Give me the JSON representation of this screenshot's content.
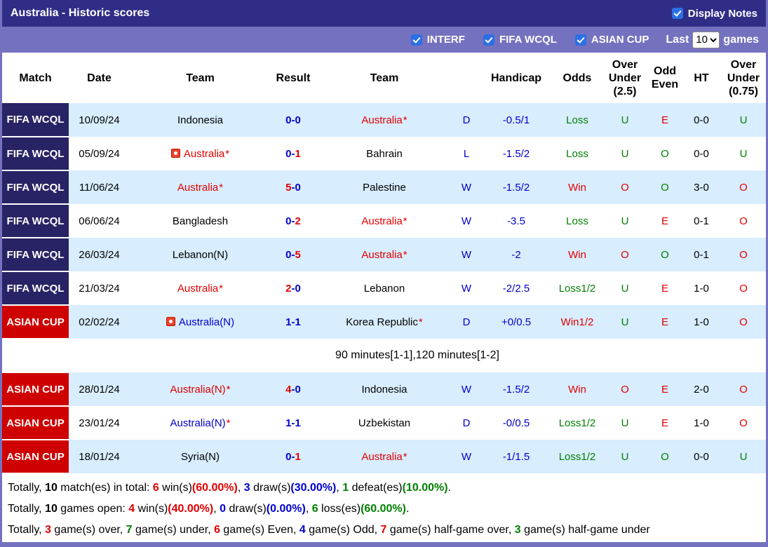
{
  "title_bar": {
    "title": "Australia - Historic scores",
    "display_notes_label": "Display Notes"
  },
  "filter_bar": {
    "checkboxes": [
      {
        "label": "INTERF",
        "checked": true
      },
      {
        "label": "FIFA WCQL",
        "checked": true
      },
      {
        "label": "ASIAN CUP",
        "checked": true
      }
    ],
    "last_label": "Last",
    "games_count": "10",
    "games_label": "games"
  },
  "table": {
    "headers": [
      "Match",
      "Date",
      "Team",
      "Result",
      "Team",
      "",
      "Handicap",
      "Odds",
      "Over Under (2.5)",
      "Odd Even",
      "HT",
      "Over Under (0.75)"
    ],
    "rows": [
      {
        "league": "FIFA WCQL",
        "league_type": "fifa",
        "date": "10/09/24",
        "team1": {
          "name": "Indonesia",
          "color": "black",
          "star": false,
          "icon": false
        },
        "score": {
          "home": "0",
          "away": "0",
          "home_color": "blue",
          "away_color": "blue"
        },
        "team2": {
          "name": "Australia",
          "color": "red",
          "star": true,
          "icon": false
        },
        "wdl": "D",
        "handicap": "-0.5/1",
        "odds": {
          "text": "Loss",
          "color": "green"
        },
        "ou25": {
          "text": "U",
          "color": "green"
        },
        "odd_even": {
          "text": "E",
          "color": "red"
        },
        "ht": "0-0",
        "ou075": {
          "text": "U",
          "color": "green"
        },
        "shade": true,
        "note": null
      },
      {
        "league": "FIFA WCQL",
        "league_type": "fifa",
        "date": "05/09/24",
        "team1": {
          "name": "Australia",
          "color": "red",
          "star": true,
          "icon": true
        },
        "score": {
          "home": "0",
          "away": "1",
          "home_color": "blue",
          "away_color": "red"
        },
        "team2": {
          "name": "Bahrain",
          "color": "black",
          "star": false,
          "icon": false
        },
        "wdl": "L",
        "handicap": "-1.5/2",
        "odds": {
          "text": "Loss",
          "color": "green"
        },
        "ou25": {
          "text": "U",
          "color": "green"
        },
        "odd_even": {
          "text": "O",
          "color": "green"
        },
        "ht": "0-0",
        "ou075": {
          "text": "U",
          "color": "green"
        },
        "shade": false,
        "note": null
      },
      {
        "league": "FIFA WCQL",
        "league_type": "fifa",
        "date": "11/06/24",
        "team1": {
          "name": "Australia",
          "color": "red",
          "star": true,
          "icon": false
        },
        "score": {
          "home": "5",
          "away": "0",
          "home_color": "red",
          "away_color": "blue"
        },
        "team2": {
          "name": "Palestine",
          "color": "black",
          "star": false,
          "icon": false
        },
        "wdl": "W",
        "handicap": "-1.5/2",
        "odds": {
          "text": "Win",
          "color": "red"
        },
        "ou25": {
          "text": "O",
          "color": "red"
        },
        "odd_even": {
          "text": "O",
          "color": "green"
        },
        "ht": "3-0",
        "ou075": {
          "text": "O",
          "color": "red"
        },
        "shade": true,
        "note": null
      },
      {
        "league": "FIFA WCQL",
        "league_type": "fifa",
        "date": "06/06/24",
        "team1": {
          "name": "Bangladesh",
          "color": "black",
          "star": false,
          "icon": false
        },
        "score": {
          "home": "0",
          "away": "2",
          "home_color": "blue",
          "away_color": "red"
        },
        "team2": {
          "name": "Australia",
          "color": "red",
          "star": true,
          "icon": false
        },
        "wdl": "W",
        "handicap": "-3.5",
        "odds": {
          "text": "Loss",
          "color": "green"
        },
        "ou25": {
          "text": "U",
          "color": "green"
        },
        "odd_even": {
          "text": "E",
          "color": "red"
        },
        "ht": "0-1",
        "ou075": {
          "text": "O",
          "color": "red"
        },
        "shade": false,
        "note": null
      },
      {
        "league": "FIFA WCQL",
        "league_type": "fifa",
        "date": "26/03/24",
        "team1": {
          "name": "Lebanon(N)",
          "color": "black",
          "star": false,
          "icon": false
        },
        "score": {
          "home": "0",
          "away": "5",
          "home_color": "blue",
          "away_color": "red"
        },
        "team2": {
          "name": "Australia",
          "color": "red",
          "star": true,
          "icon": false
        },
        "wdl": "W",
        "handicap": "-2",
        "odds": {
          "text": "Win",
          "color": "red"
        },
        "ou25": {
          "text": "O",
          "color": "red"
        },
        "odd_even": {
          "text": "O",
          "color": "green"
        },
        "ht": "0-1",
        "ou075": {
          "text": "O",
          "color": "red"
        },
        "shade": true,
        "note": null
      },
      {
        "league": "FIFA WCQL",
        "league_type": "fifa",
        "date": "21/03/24",
        "team1": {
          "name": "Australia",
          "color": "red",
          "star": true,
          "icon": false
        },
        "score": {
          "home": "2",
          "away": "0",
          "home_color": "red",
          "away_color": "blue"
        },
        "team2": {
          "name": "Lebanon",
          "color": "black",
          "star": false,
          "icon": false
        },
        "wdl": "W",
        "handicap": "-2/2.5",
        "odds": {
          "text": "Loss1/2",
          "color": "green"
        },
        "ou25": {
          "text": "U",
          "color": "green"
        },
        "odd_even": {
          "text": "E",
          "color": "red"
        },
        "ht": "1-0",
        "ou075": {
          "text": "O",
          "color": "red"
        },
        "shade": false,
        "note": null
      },
      {
        "league": "ASIAN CUP",
        "league_type": "asian",
        "date": "02/02/24",
        "team1": {
          "name": "Australia(N)",
          "color": "blue",
          "star": false,
          "icon": true
        },
        "score": {
          "home": "1",
          "away": "1",
          "home_color": "blue",
          "away_color": "blue"
        },
        "team2": {
          "name": "Korea Republic",
          "color": "black",
          "star": true,
          "icon": false
        },
        "wdl": "D",
        "handicap": "+0/0.5",
        "odds": {
          "text": "Win1/2",
          "color": "red"
        },
        "ou25": {
          "text": "U",
          "color": "green"
        },
        "odd_even": {
          "text": "E",
          "color": "red"
        },
        "ht": "1-0",
        "ou075": {
          "text": "O",
          "color": "red"
        },
        "shade": true,
        "note": "90 minutes[1-1],120 minutes[1-2]"
      },
      {
        "league": "ASIAN CUP",
        "league_type": "asian",
        "date": "28/01/24",
        "team1": {
          "name": "Australia(N)",
          "color": "red",
          "star": true,
          "icon": false
        },
        "score": {
          "home": "4",
          "away": "0",
          "home_color": "red",
          "away_color": "blue"
        },
        "team2": {
          "name": "Indonesia",
          "color": "black",
          "star": false,
          "icon": false
        },
        "wdl": "W",
        "handicap": "-1.5/2",
        "odds": {
          "text": "Win",
          "color": "red"
        },
        "ou25": {
          "text": "O",
          "color": "red"
        },
        "odd_even": {
          "text": "E",
          "color": "red"
        },
        "ht": "2-0",
        "ou075": {
          "text": "O",
          "color": "red"
        },
        "shade": true,
        "note": null
      },
      {
        "league": "ASIAN CUP",
        "league_type": "asian",
        "date": "23/01/24",
        "team1": {
          "name": "Australia(N)",
          "color": "blue",
          "star": true,
          "icon": false
        },
        "score": {
          "home": "1",
          "away": "1",
          "home_color": "blue",
          "away_color": "blue"
        },
        "team2": {
          "name": "Uzbekistan",
          "color": "black",
          "star": false,
          "icon": false
        },
        "wdl": "D",
        "handicap": "-0/0.5",
        "odds": {
          "text": "Loss1/2",
          "color": "green"
        },
        "ou25": {
          "text": "U",
          "color": "green"
        },
        "odd_even": {
          "text": "E",
          "color": "red"
        },
        "ht": "1-0",
        "ou075": {
          "text": "O",
          "color": "red"
        },
        "shade": false,
        "note": null
      },
      {
        "league": "ASIAN CUP",
        "league_type": "asian",
        "date": "18/01/24",
        "team1": {
          "name": "Syria(N)",
          "color": "black",
          "star": false,
          "icon": false
        },
        "score": {
          "home": "0",
          "away": "1",
          "home_color": "blue",
          "away_color": "red"
        },
        "team2": {
          "name": "Australia",
          "color": "red",
          "star": true,
          "icon": false
        },
        "wdl": "W",
        "handicap": "-1/1.5",
        "odds": {
          "text": "Loss1/2",
          "color": "green"
        },
        "ou25": {
          "text": "U",
          "color": "green"
        },
        "odd_even": {
          "text": "O",
          "color": "green"
        },
        "ht": "0-0",
        "ou075": {
          "text": "U",
          "color": "green"
        },
        "shade": true,
        "note": null
      }
    ]
  },
  "summary": {
    "lines": [
      [
        {
          "t": "Totally, ",
          "c": "black"
        },
        {
          "t": "10",
          "c": "black",
          "b": true
        },
        {
          "t": " match(es) in total: ",
          "c": "black"
        },
        {
          "t": "6",
          "c": "red",
          "b": true
        },
        {
          "t": " win(s)",
          "c": "black"
        },
        {
          "t": "(60.00%)",
          "c": "red",
          "b": true
        },
        {
          "t": ", ",
          "c": "black"
        },
        {
          "t": "3",
          "c": "blue",
          "b": true
        },
        {
          "t": " draw(s)",
          "c": "black"
        },
        {
          "t": "(30.00%)",
          "c": "blue",
          "b": true
        },
        {
          "t": ", ",
          "c": "black"
        },
        {
          "t": "1",
          "c": "green",
          "b": true
        },
        {
          "t": " defeat(es)",
          "c": "black"
        },
        {
          "t": "(10.00%)",
          "c": "green",
          "b": true
        },
        {
          "t": ".",
          "c": "black"
        }
      ],
      [
        {
          "t": "Totally, ",
          "c": "black"
        },
        {
          "t": "10",
          "c": "black",
          "b": true
        },
        {
          "t": " games open: ",
          "c": "black"
        },
        {
          "t": "4",
          "c": "red",
          "b": true
        },
        {
          "t": " win(s)",
          "c": "black"
        },
        {
          "t": "(40.00%)",
          "c": "red",
          "b": true
        },
        {
          "t": ", ",
          "c": "black"
        },
        {
          "t": "0",
          "c": "blue",
          "b": true
        },
        {
          "t": " draw(s)",
          "c": "black"
        },
        {
          "t": "(0.00%)",
          "c": "blue",
          "b": true
        },
        {
          "t": ", ",
          "c": "black"
        },
        {
          "t": "6",
          "c": "green",
          "b": true
        },
        {
          "t": " loss(es)",
          "c": "black"
        },
        {
          "t": "(60.00%)",
          "c": "green",
          "b": true
        },
        {
          "t": ".",
          "c": "black"
        }
      ],
      [
        {
          "t": "Totally, ",
          "c": "black"
        },
        {
          "t": "3",
          "c": "red",
          "b": true
        },
        {
          "t": " game(s) over, ",
          "c": "black"
        },
        {
          "t": "7",
          "c": "green",
          "b": true
        },
        {
          "t": " game(s) under, ",
          "c": "black"
        },
        {
          "t": "6",
          "c": "red",
          "b": true
        },
        {
          "t": " game(s) Even, ",
          "c": "black"
        },
        {
          "t": "4",
          "c": "blue",
          "b": true
        },
        {
          "t": " game(s) Odd, ",
          "c": "black"
        },
        {
          "t": "7",
          "c": "red",
          "b": true
        },
        {
          "t": " game(s) half-game over, ",
          "c": "black"
        },
        {
          "t": "3",
          "c": "green",
          "b": true
        },
        {
          "t": " game(s) half-game under",
          "c": "black"
        }
      ]
    ]
  },
  "colors": {
    "red": "#e10000",
    "green": "#008000",
    "blue": "#0000cc",
    "black": "#000000",
    "theme": {
      "titlebar-bg": "#302d87",
      "filterbar-bg": "#7472bf",
      "fifa-badge-bg": "#282364",
      "asian-badge-bg": "#cf0000",
      "row-shade-bg": "#d8edfe",
      "checkbox-bg": "#2b6fe3",
      "panel-border": "#7472bf"
    }
  }
}
